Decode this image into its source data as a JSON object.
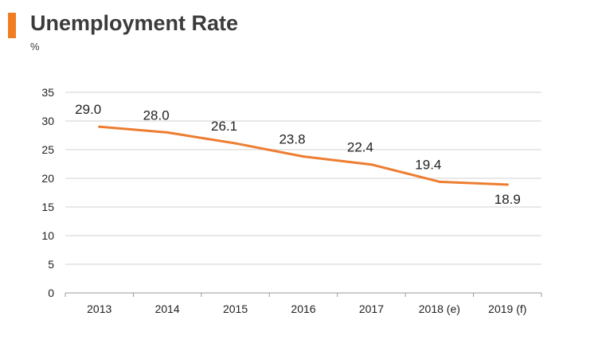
{
  "header": {
    "title": "Unemployment Rate",
    "unit": "%"
  },
  "colors": {
    "accent": "#f07d22",
    "line": "#ed7d31",
    "grid": "#d0d0d0",
    "text": "#222222"
  },
  "chart_data": {
    "type": "line",
    "categories": [
      "2013",
      "2014",
      "2015",
      "2016",
      "2017",
      "2018 (e)",
      "2019 (f)"
    ],
    "series": [
      {
        "values": [
          29.0,
          28.0,
          26.1,
          23.8,
          22.4,
          19.4,
          18.9
        ],
        "labels": [
          "29.0",
          "28.0",
          "26.1",
          "23.8",
          "22.4",
          "19.4",
          "18.9"
        ]
      }
    ],
    "ylim": [
      0,
      35
    ],
    "yticks": [
      0,
      5,
      10,
      15,
      20,
      25,
      30,
      35
    ],
    "grid": true,
    "legend": "none"
  }
}
